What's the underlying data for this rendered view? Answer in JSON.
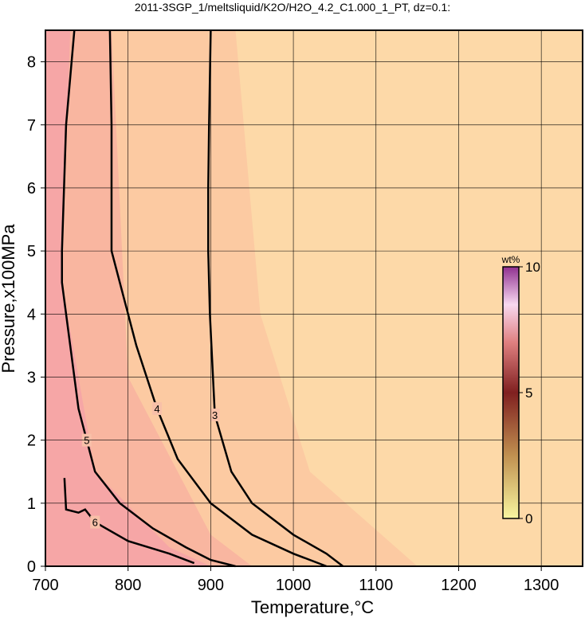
{
  "chart_data": {
    "type": "contour",
    "title": "2011-3SGP_1/meltsliquid/K2O/H2O_4.2_C1.000_1_PT, dz=0.1:",
    "x_label": "Temperature,°C",
    "y_label": "Pressure,x100MPa",
    "xlim": [
      700,
      1350
    ],
    "xticks": [
      700,
      800,
      900,
      1000,
      1100,
      1200,
      1300
    ],
    "ylim": [
      0,
      8.5
    ],
    "yticks": [
      0,
      1,
      2,
      3,
      4,
      5,
      6,
      7,
      8
    ],
    "grid": true,
    "contours": [
      {
        "level": 3,
        "x": [
          900,
          898,
          897,
          897,
          899,
          905,
          925,
          950,
          1000,
          1040,
          1060
        ],
        "y": [
          8.5,
          7,
          6,
          5,
          4,
          2.4,
          1.5,
          1,
          0.5,
          0.2,
          0
        ]
      },
      {
        "level": 4,
        "x": [
          778,
          780,
          780,
          790,
          810,
          835,
          860,
          900,
          950,
          1000,
          1040
        ],
        "y": [
          8.5,
          7,
          5,
          4.5,
          3.5,
          2.5,
          1.7,
          1,
          0.5,
          0.2,
          0
        ]
      },
      {
        "level": 5,
        "x": [
          735,
          725,
          720,
          720,
          730,
          740,
          750,
          760,
          790,
          830,
          870,
          900,
          930
        ],
        "y": [
          8.5,
          7,
          5,
          4.5,
          3.5,
          2.5,
          2,
          1.5,
          1,
          0.6,
          0.3,
          0.1,
          0
        ]
      },
      {
        "level": 6,
        "x": [
          723,
          725,
          740,
          748,
          760,
          800,
          850,
          880
        ],
        "y": [
          1.4,
          0.9,
          0.85,
          0.9,
          0.7,
          0.4,
          0.2,
          0.05
        ]
      }
    ],
    "colorbar": {
      "label": "wt%",
      "range": [
        0,
        10
      ],
      "ticks": [
        0,
        5,
        10
      ]
    }
  }
}
